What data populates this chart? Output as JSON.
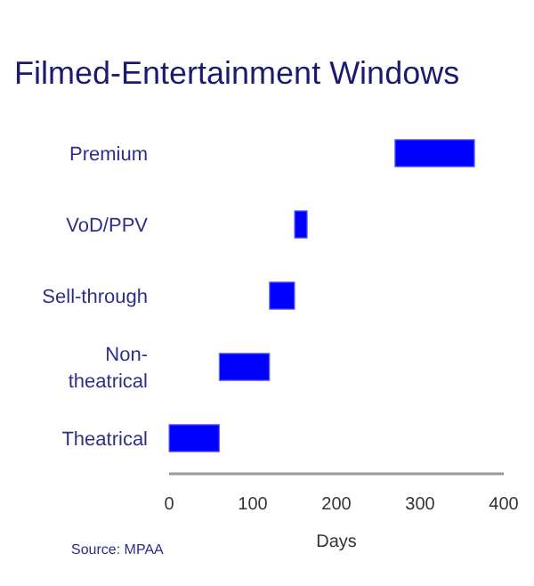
{
  "chart_data": {
    "type": "bar",
    "orientation": "horizontal",
    "title": "Filmed-Entertainment Windows",
    "xlabel": "Days",
    "categories": [
      "Premium",
      "VoD/PPV",
      "Sell-through",
      "Non-theatrical",
      "Theatrical"
    ],
    "base": [
      270,
      150,
      120,
      60,
      0
    ],
    "values": [
      95,
      15,
      30,
      60,
      60
    ],
    "color": "#0000ff",
    "xlim": [
      0,
      400
    ],
    "xticks": [
      0,
      100,
      200,
      300,
      400
    ],
    "grid": false,
    "annotations": [
      "Source: MPAA"
    ]
  }
}
